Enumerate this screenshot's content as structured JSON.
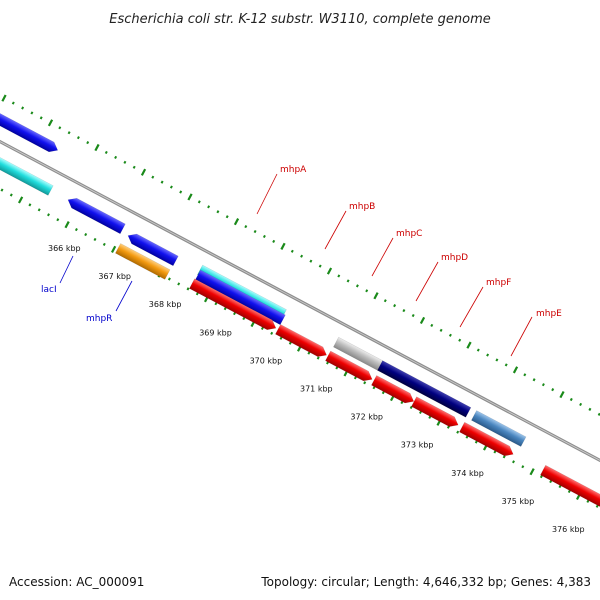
{
  "title": "Escherichia coli str. K-12 substr. W3110, complete genome",
  "footer": {
    "accession": "Accession: AC_000091",
    "topology": "Topology: circular; Length: 4,646,332 bp; Genes: 4,383"
  },
  "kbp_ticks": [
    {
      "label": "366 kbp",
      "kbp": 366
    },
    {
      "label": "367 kbp",
      "kbp": 367
    },
    {
      "label": "368 kbp",
      "kbp": 368
    },
    {
      "label": "369 kbp",
      "kbp": 369
    },
    {
      "label": "370 kbp",
      "kbp": 370
    },
    {
      "label": "371 kbp",
      "kbp": 371
    },
    {
      "label": "372 kbp",
      "kbp": 372
    },
    {
      "label": "373 kbp",
      "kbp": 373
    },
    {
      "label": "374 kbp",
      "kbp": 374
    },
    {
      "label": "375 kbp",
      "kbp": 375
    },
    {
      "label": "376 kbp",
      "kbp": 376
    }
  ],
  "labeled_genes": [
    {
      "name": "lacI",
      "color": "#0000cc"
    },
    {
      "name": "mhpR",
      "color": "#0000cc"
    },
    {
      "name": "mhpA",
      "color": "#cc0000"
    },
    {
      "name": "mhpB",
      "color": "#cc0000"
    },
    {
      "name": "mhpC",
      "color": "#cc0000"
    },
    {
      "name": "mhpD",
      "color": "#cc0000"
    },
    {
      "name": "mhpF",
      "color": "#cc0000"
    },
    {
      "name": "mhpE",
      "color": "#cc0000"
    }
  ],
  "colors": {
    "backbone": "#888888",
    "tick_marks": "#1a8a1a",
    "gene_red": "#ee0000",
    "gene_blue": "#1111ee",
    "gene_cyan": "#22dddd",
    "gene_orange": "#f39a10",
    "gene_navy": "#000080",
    "gene_steel": "#4a86bf",
    "gene_grey": "#bbbbbb"
  }
}
